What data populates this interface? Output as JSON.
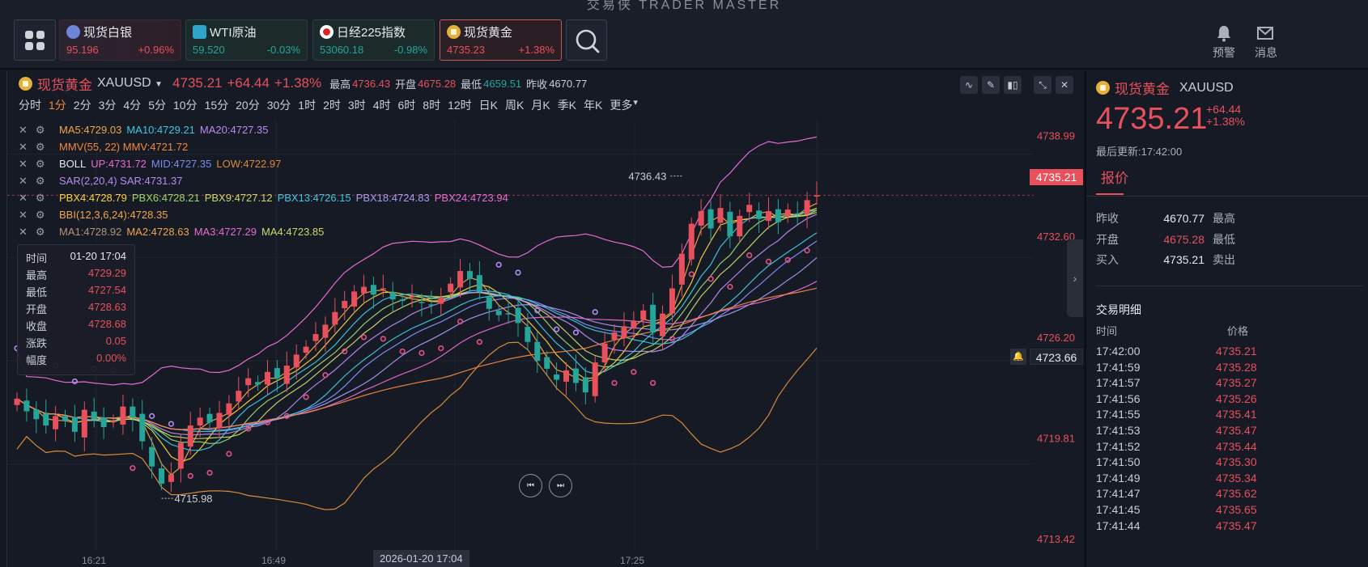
{
  "app": {
    "title": "交易侠 TRADER MASTER"
  },
  "tickers": [
    {
      "name": "现货白银",
      "price": "95.196",
      "change": "+0.96%",
      "dir": "up",
      "icon": "silver-icon"
    },
    {
      "name": "WTI原油",
      "price": "59.520",
      "change": "-0.03%",
      "dir": "down",
      "icon": "oil-icon"
    },
    {
      "name": "日经225指数",
      "price": "53060.18",
      "change": "-0.98%",
      "dir": "down",
      "icon": "japan-flag-icon"
    },
    {
      "name": "现货黄金",
      "price": "4735.23",
      "change": "+1.38%",
      "dir": "up",
      "icon": "gold-icon"
    }
  ],
  "header_actions": {
    "alert_label": "预警",
    "message_label": "消息"
  },
  "chart": {
    "symbol_name": "现货黄金",
    "symbol_code": "XAUUSD",
    "price": "4735.21",
    "change": "+64.44",
    "change_pct": "+1.38%",
    "high_label": "最高",
    "high": "4736.43",
    "open_label": "开盘",
    "open": "4675.28",
    "low_label": "最低",
    "low": "4659.51",
    "prev_label": "昨收",
    "prev": "4670.77",
    "timeframes": [
      "分时",
      "1分",
      "2分",
      "3分",
      "4分",
      "5分",
      "10分",
      "15分",
      "20分",
      "30分",
      "1时",
      "2时",
      "3时",
      "4时",
      "6时",
      "8时",
      "12时",
      "日K",
      "周K",
      "月K",
      "季K",
      "年K",
      "更多"
    ],
    "active_timeframe": "1分",
    "indicators": [
      [
        {
          "t": "MA5:4729.03",
          "c": "#f0a64a"
        },
        {
          "t": "MA10:4729.21",
          "c": "#3ec8e0"
        },
        {
          "t": "MA20:4727.35",
          "c": "#b98cf0"
        }
      ],
      [
        {
          "t": "MMV(55, 22) MMV:4721.72",
          "c": "#f0883e"
        }
      ],
      [
        {
          "t": "BOLL",
          "c": "#e6e9ee"
        },
        {
          "t": "UP:4731.72",
          "c": "#e86bd0"
        },
        {
          "t": "MID:4727.35",
          "c": "#7b8cf0"
        },
        {
          "t": "LOW:4722.97",
          "c": "#d98b3a"
        }
      ],
      [
        {
          "t": "SAR(2,20,4) SAR:4731.37",
          "c": "#b98cf0"
        }
      ],
      [
        {
          "t": "PBX4:4728.79",
          "c": "#f5d23c"
        },
        {
          "t": "PBX6:4728.21",
          "c": "#9bd76a"
        },
        {
          "t": "PBX9:4727.12",
          "c": "#cdd86a"
        },
        {
          "t": "PBX13:4726.15",
          "c": "#3ec8e0"
        },
        {
          "t": "PBX18:4724.83",
          "c": "#a89af0"
        },
        {
          "t": "PBX24:4723.94",
          "c": "#e86bd0"
        }
      ],
      [
        {
          "t": "BBI(12,3,6,24):4728.35",
          "c": "#f0a64a"
        }
      ],
      [
        {
          "t": "MA1:4728.92",
          "c": "#b0937a"
        },
        {
          "t": "MA2:4728.63",
          "c": "#f0a64a"
        },
        {
          "t": "MA3:4727.29",
          "c": "#e86bd0"
        },
        {
          "t": "MA4:4723.85",
          "c": "#cdd86a"
        }
      ]
    ],
    "price_axis": [
      "4738.99",
      "4732.60",
      "4726.20",
      "4719.81",
      "4713.42"
    ],
    "current_price_tag": "4735.21",
    "alert_price_tag": "4723.66",
    "high_marker": "4736.43",
    "low_marker": "4715.98",
    "time_axis": [
      "16:21",
      "16:49",
      "17:25"
    ],
    "crosshair_time": "2026-01-20 17:04",
    "tooltip": [
      {
        "k": "时间",
        "v": "01-20 17:04",
        "w": true
      },
      {
        "k": "最高",
        "v": "4729.29"
      },
      {
        "k": "最低",
        "v": "4727.54"
      },
      {
        "k": "开盘",
        "v": "4728.63"
      },
      {
        "k": "收盘",
        "v": "4728.68"
      },
      {
        "k": "涨跌",
        "v": "0.05"
      },
      {
        "k": "幅度",
        "v": "0.00%"
      }
    ]
  },
  "quote_panel": {
    "name": "现货黄金",
    "code": "XAUUSD",
    "price": "4735.21",
    "change": "+64.44",
    "change_pct": "+1.38%",
    "updated": "最后更新:17:42:00",
    "tab_label": "报价",
    "stats": [
      {
        "k": "昨收",
        "v": "4670.77",
        "red": false,
        "k2": "最高"
      },
      {
        "k": "开盘",
        "v": "4675.28",
        "red": true,
        "k2": "最低"
      },
      {
        "k": "买入",
        "v": "4735.21",
        "red": false,
        "k2": "卖出"
      }
    ],
    "trades_title": "交易明细",
    "trades_col_time": "时间",
    "trades_col_price": "价格",
    "trades": [
      {
        "time": "17:42:00",
        "price": "4735.21"
      },
      {
        "time": "17:41:59",
        "price": "4735.28"
      },
      {
        "time": "17:41:57",
        "price": "4735.27"
      },
      {
        "time": "17:41:56",
        "price": "4735.26"
      },
      {
        "time": "17:41:55",
        "price": "4735.41"
      },
      {
        "time": "17:41:53",
        "price": "4735.47"
      },
      {
        "time": "17:41:52",
        "price": "4735.44"
      },
      {
        "time": "17:41:50",
        "price": "4735.30"
      },
      {
        "time": "17:41:49",
        "price": "4735.34"
      },
      {
        "time": "17:41:47",
        "price": "4735.62"
      },
      {
        "time": "17:41:45",
        "price": "4735.65"
      },
      {
        "time": "17:41:44",
        "price": "4735.47"
      }
    ]
  },
  "chart_data": {
    "type": "candlestick",
    "series_close": [
      4722.3,
      4721.5,
      4721.0,
      4720.6,
      4721.2,
      4720.9,
      4720.2,
      4721.6,
      4721.0,
      4720.5,
      4720.9,
      4721.8,
      4721.1,
      4719.6,
      4718.0,
      4716.9,
      4717.5,
      4719.5,
      4720.6,
      4721.1,
      4720.8,
      4721.4,
      4722.0,
      4722.8,
      4723.6,
      4723.2,
      4724.0,
      4723.6,
      4724.4,
      4725.1,
      4725.6,
      4726.4,
      4727.0,
      4727.8,
      4728.5,
      4729.1,
      4729.4,
      4728.9,
      4729.3,
      4728.6,
      4728.5,
      4728.8,
      4728.4,
      4728.2,
      4728.7,
      4729.6,
      4730.4,
      4729.9,
      4729.1,
      4728.0,
      4727.6,
      4727.7,
      4727.1,
      4725.9,
      4724.7,
      4724.2,
      4723.5,
      4724.1,
      4723.3,
      4722.7,
      4724.6,
      4725.8,
      4726.5,
      4726.9,
      4727.2,
      4727.9,
      4726.5,
      4727.7,
      4729.3,
      4731.5,
      4733.4,
      4734.2,
      4733.1,
      4734.4,
      4732.6,
      4733.9,
      4734.6,
      4733.7,
      4734.2,
      4733.5,
      4734.3,
      4734.0,
      4734.9,
      4735.2
    ]
  }
}
